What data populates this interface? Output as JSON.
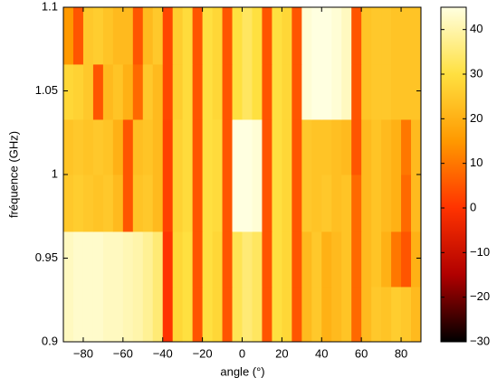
{
  "chart_data": {
    "type": "heatmap",
    "xlabel": "angle (°)",
    "ylabel": "fréquence (GHz)",
    "x_bins": [
      -90,
      -85,
      -80,
      -75,
      -70,
      -65,
      -60,
      -55,
      -50,
      -45,
      -40,
      -35,
      -30,
      -25,
      -20,
      -15,
      -10,
      -5,
      0,
      5,
      10,
      15,
      20,
      25,
      30,
      35,
      40,
      45,
      50,
      55,
      60,
      65,
      70,
      75,
      80,
      85,
      90
    ],
    "y_bins": [
      0.9,
      0.933,
      0.966,
      1.0,
      1.033,
      1.066,
      1.1
    ],
    "z": [
      [
        42,
        43,
        43,
        43,
        42,
        42,
        41,
        40,
        38,
        35,
        0,
        28,
        30,
        5,
        30,
        28,
        5,
        32,
        35,
        33,
        5,
        30,
        28,
        5,
        22,
        25,
        20,
        22,
        24,
        8,
        22,
        25,
        24,
        26,
        25,
        22
      ],
      [
        42,
        43,
        43,
        43,
        42,
        42,
        41,
        40,
        38,
        35,
        0,
        28,
        30,
        5,
        30,
        28,
        5,
        32,
        35,
        33,
        5,
        30,
        28,
        5,
        22,
        25,
        20,
        22,
        24,
        8,
        22,
        24,
        20,
        10,
        5,
        20
      ],
      [
        25,
        26,
        25,
        24,
        25,
        22,
        5,
        24,
        25,
        22,
        2,
        27,
        29,
        5,
        30,
        29,
        5,
        45,
        45,
        44,
        5,
        30,
        28,
        5,
        25,
        24,
        25,
        23,
        24,
        8,
        22,
        24,
        22,
        20,
        8,
        22
      ],
      [
        24,
        25,
        24,
        25,
        24,
        20,
        5,
        23,
        24,
        22,
        2,
        27,
        29,
        5,
        30,
        29,
        5,
        45,
        45,
        44,
        5,
        30,
        28,
        5,
        25,
        24,
        24,
        23,
        22,
        5,
        22,
        24,
        22,
        20,
        10,
        22
      ],
      [
        28,
        27,
        25,
        5,
        22,
        24,
        20,
        8,
        25,
        22,
        3,
        26,
        29,
        5,
        30,
        28,
        5,
        30,
        33,
        30,
        5,
        30,
        28,
        5,
        44,
        45,
        45,
        44,
        42,
        5,
        24,
        25,
        25,
        24,
        24,
        24
      ],
      [
        15,
        5,
        25,
        26,
        24,
        22,
        22,
        5,
        22,
        25,
        3,
        26,
        29,
        5,
        30,
        28,
        5,
        30,
        33,
        30,
        5,
        30,
        28,
        5,
        44,
        45,
        45,
        44,
        42,
        5,
        24,
        25,
        25,
        24,
        24,
        24
      ]
    ],
    "xlim": [
      -90,
      90
    ],
    "ylim": [
      0.9,
      1.1
    ],
    "xticks": [
      {
        "value": -80,
        "label": "−80"
      },
      {
        "value": -60,
        "label": "−60"
      },
      {
        "value": -40,
        "label": "−40"
      },
      {
        "value": -20,
        "label": "−20"
      },
      0,
      20,
      40,
      60,
      80
    ],
    "yticks": [
      0.9,
      0.95,
      1,
      1.05,
      1.1
    ],
    "clim": [
      -30,
      45
    ],
    "cticks": [
      {
        "value": -30,
        "label": "−30"
      },
      {
        "value": -20,
        "label": "−20"
      },
      {
        "value": -10,
        "label": "−10"
      },
      0,
      10,
      20,
      30,
      40
    ],
    "colormap": [
      "#000000",
      "#b00000",
      "#ff3300",
      "#ff9900",
      "#ffe040",
      "#ffffe0"
    ]
  }
}
